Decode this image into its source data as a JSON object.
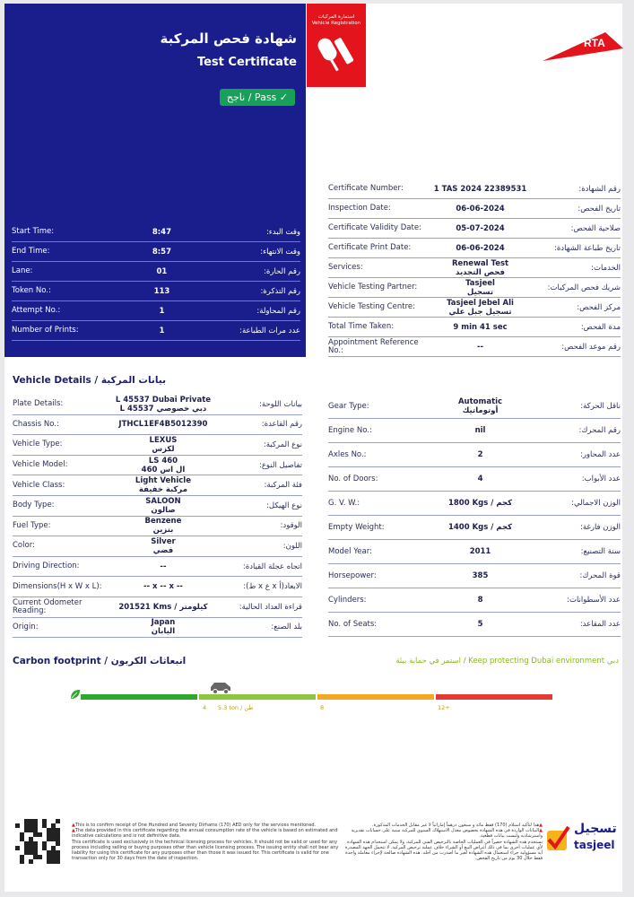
{
  "header": {
    "title_ar": "شهادة فحص المركبة",
    "title_en": "Test Certificate",
    "status": "ناجح / Pass",
    "registration_ar": "استمارة المركبات",
    "registration_en": "Vehicle Registration",
    "logo": "RTA",
    "colors": {
      "blue": "#1a1e8c",
      "red": "#e3141b",
      "pass": "#18a058"
    }
  },
  "timing": [
    {
      "l": "Start Time:",
      "v": "8:47",
      "a": "وقت البدء:"
    },
    {
      "l": "End Time:",
      "v": "8:57",
      "a": "وقت الانتهاء:"
    },
    {
      "l": "Lane:",
      "v": "01",
      "a": "رقم الحارة:"
    },
    {
      "l": "Token No.:",
      "v": "113",
      "a": "رقم التذكرة:"
    },
    {
      "l": "Attempt No.:",
      "v": "1",
      "a": "رقم المحاولة:"
    },
    {
      "l": "Number of Prints:",
      "v": "1",
      "a": "عدد مرات الطباعة:"
    }
  ],
  "certificate": [
    {
      "l": "Certificate Number:",
      "v": "1 TAS 2024 22389531",
      "a": "رقم الشهادة:"
    },
    {
      "l": "Inspection Date:",
      "v": "06-06-2024",
      "a": "تاريخ الفحص:"
    },
    {
      "l": "Certificate Validity Date:",
      "v": "05-07-2024",
      "a": "صلاحية الفحص:"
    },
    {
      "l": "Certificate Print Date:",
      "v": "06-06-2024",
      "a": "تاريخ طباعة الشهادة:"
    },
    {
      "l": "Services:",
      "v": "Renewal Test\nفحص التجديد",
      "a": "الخدمات:"
    },
    {
      "l": "Vehicle Testing Partner:",
      "v": "Tasjeel\nتسجيل",
      "a": "شريك فحص المركبات:"
    },
    {
      "l": "Vehicle Testing Centre:",
      "v": "Tasjeel Jebel Ali\nتسجيل جبل علي",
      "a": "مركز الفحص:"
    },
    {
      "l": "Total Time Taken:",
      "v": "9 min 41 sec",
      "a": "مدة الفحص:"
    },
    {
      "l": "Appointment Reference No.:",
      "v": "--",
      "a": "رقم موعد الفحص:"
    }
  ],
  "vehicle_title": "Vehicle Details / بيانات المركبة",
  "vehicle_left": [
    {
      "l": "Plate Details:",
      "v": "L 45537 Dubai Private\nL 45537 دبي خصوصي",
      "a": "بيانات اللوحة:"
    },
    {
      "l": "Chassis No.:",
      "v": "JTHCL1EF4B5012390",
      "a": "رقم القاعدة:"
    },
    {
      "l": "Vehicle Type:",
      "v": "LEXUS\nلكزس",
      "a": "نوع المركبة:"
    },
    {
      "l": "Vehicle Model:",
      "v": "LS 460\nال اس 460",
      "a": "تفاصيل النوع:"
    },
    {
      "l": "Vehicle Class:",
      "v": "Light Vehicle\nمركبة خفيفة",
      "a": "فئة المركبة:"
    },
    {
      "l": "Body Type:",
      "v": "SALOON\nصالون",
      "a": "نوع الهيكل:"
    },
    {
      "l": "Fuel Type:",
      "v": "Benzene\nبنزين",
      "a": "الوقود:"
    },
    {
      "l": "Color:",
      "v": "Silver\nفضي",
      "a": "اللون:"
    },
    {
      "l": "Driving Direction:",
      "v": "--",
      "a": "اتجاه عجلة القيادة:"
    },
    {
      "l": "Dimensions(H x W x L):",
      "v": "-- x -- x --",
      "a": "الابعاد(أ x ع x ط):"
    },
    {
      "l": "Current Odometer Reading:",
      "v": "201521 Kms / كيلومتر",
      "a": "قراءة العداد الحالية:"
    },
    {
      "l": "Origin:",
      "v": "Japan\nاليابان",
      "a": "بلد الصنع:"
    }
  ],
  "vehicle_right": [
    {
      "l": "Gear Type:",
      "v": "Automatic\nأوتوماتيك",
      "a": "ناقل الحركة:"
    },
    {
      "l": "Engine No.:",
      "v": "nil",
      "a": "رقم المحرك:"
    },
    {
      "l": "Axles No.:",
      "v": "2",
      "a": "عدد المحاور:"
    },
    {
      "l": "No. of Doors:",
      "v": "4",
      "a": "عدد الأبواب:"
    },
    {
      "l": "G. V. W.:",
      "v": "1800 Kgs / كجم",
      "a": "الوزن الاجمالي:"
    },
    {
      "l": "Empty Weight:",
      "v": "1400 Kgs / كجم",
      "a": "الوزن فارغة:"
    },
    {
      "l": "Model Year:",
      "v": "2011",
      "a": "سنة التصنيع:"
    },
    {
      "l": "Horsepower:",
      "v": "385",
      "a": "قوة المحرك:"
    },
    {
      "l": "Cylinders:",
      "v": "8",
      "a": "عدد الأسطوانات:"
    },
    {
      "l": "No. of Seats:",
      "v": "5",
      "a": "عدد المقاعد:"
    }
  ],
  "carbon": {
    "title": "Carbon footprint / انبعاثات الكربون",
    "message": "استمر في حماية بيئة / Keep protecting Dubai environment دبي",
    "ticks": [
      "4",
      "8",
      "12+"
    ],
    "value_label": "5.3 ton / طن",
    "value_tons": 5.3,
    "segment_colors": [
      "#2ea82e",
      "#8cc63f",
      "#f5a623",
      "#e53935"
    ]
  },
  "footer": {
    "en": [
      "This is to confirm receipt of One Hundred and Seventy Dirhams (170) AED only for the services mentioned.",
      "The data provided in this certificate regarding the annual consumption rate of the vehicle is based on estimated and indicative calculations and is not definitive data.",
      "This certificate is used exclusively in the technical licensing process for vehicles. It should not be valid or used for any process including selling or buying purposes other than vehicle licensing process. The issuing entity shall not bear any liability for using this certificate for any purposes other than those it was issued for. This certificate is valid for one transaction only for 30 days from the date of inspection."
    ],
    "ar": [
      "هذا لتأكيد استلام (170) فقط مائة و سبعون درهماً إماراتياً لا غير مقابل الخدمات المذكورة.",
      "البيانات الواردة في هذه الشهادة بخصوص معدل الاستهلاك السنوي للمركبة مبنية على حسابات تقديرية واسترشادية وليست بيانات قطعية.",
      "تستخدم هذه الشهادة حصراً في العمليات الخاصة بالترخيص الفني للمركبة، ولا يمكن استخدام هذه الشهادة لأي عمليات أخرى بما في ذلك أغراض البيع أو الشراء خلاف عملية ترخيص المركبة. لا تتحمل الجهة المصدرة أية مسؤولية جراء استعمال هذه الشهادة لغير ما أصدرت من أجله. هذه الشهادة صالحة لإجراء معاملة واحدة فقط خلال 30 يوم من تاريخ الفحص."
    ],
    "logo_ar": "تسجيل",
    "logo_en": "tasjeel"
  }
}
